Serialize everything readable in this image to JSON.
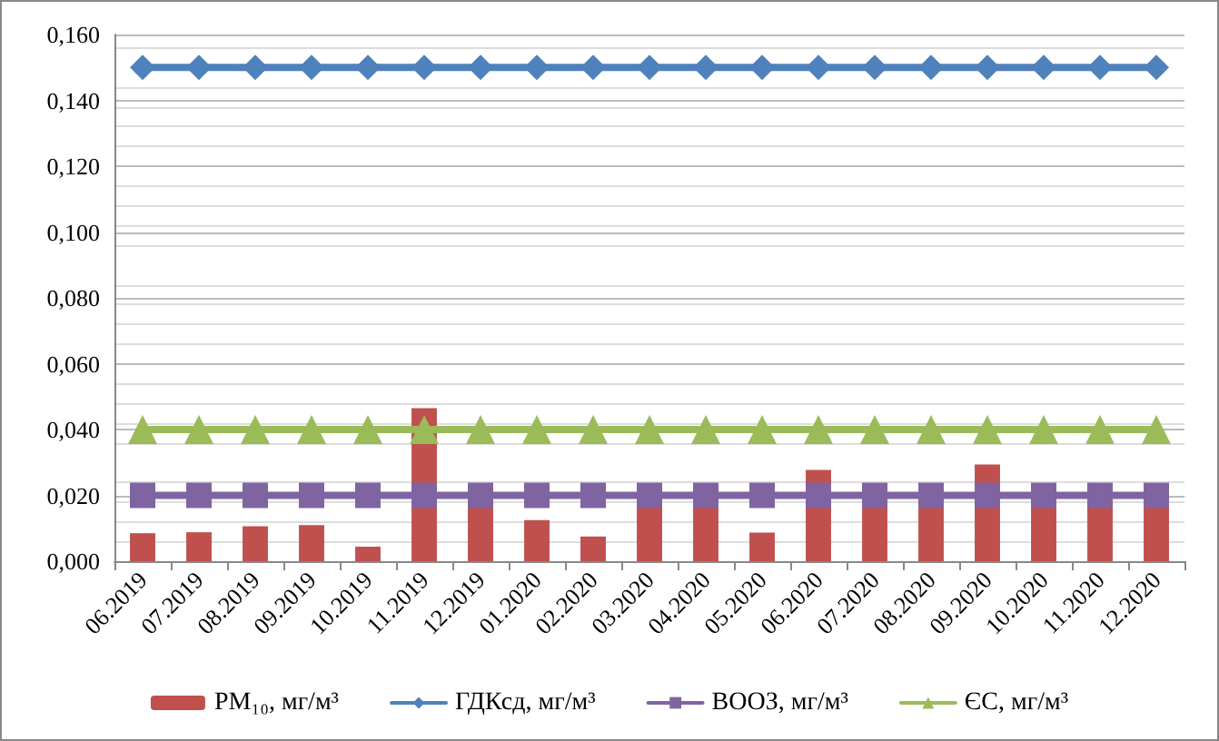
{
  "chart_data": {
    "type": "bar",
    "categories": [
      "06.2019",
      "07.2019",
      "08.2019",
      "09.2019",
      "10.2019",
      "11.2019",
      "12.2019",
      "01.2020",
      "02.2020",
      "03.2020",
      "04.2020",
      "05.2020",
      "06.2020",
      "07.2020",
      "08.2020",
      "09.2020",
      "10.2020",
      "11.2020",
      "12.2020"
    ],
    "series": [
      {
        "name": "РМ₁₀, мг/м³",
        "color": "#c0504d",
        "values": [
          0.0085,
          0.0088,
          0.0106,
          0.011,
          0.0044,
          0.0465,
          0.018,
          0.0125,
          0.0075,
          0.018,
          0.018,
          0.0087,
          0.0277,
          0.018,
          0.018,
          0.0294,
          0.018,
          0.018,
          0.018
        ]
      },
      {
        "name": "ГДКсд, мг/м³",
        "type": "line",
        "color": "#4f81bd",
        "marker": "diamond",
        "values": [
          0.15,
          0.15,
          0.15,
          0.15,
          0.15,
          0.15,
          0.15,
          0.15,
          0.15,
          0.15,
          0.15,
          0.15,
          0.15,
          0.15,
          0.15,
          0.15,
          0.15,
          0.15,
          0.15
        ]
      },
      {
        "name": "ВООЗ, мг/м³",
        "type": "line",
        "color": "#8064a2",
        "marker": "square",
        "values": [
          0.02,
          0.02,
          0.02,
          0.02,
          0.02,
          0.02,
          0.02,
          0.02,
          0.02,
          0.02,
          0.02,
          0.02,
          0.02,
          0.02,
          0.02,
          0.02,
          0.02,
          0.02,
          0.02
        ]
      },
      {
        "name": "ЄС, мг/м³",
        "type": "line",
        "color": "#9bbb59",
        "marker": "triangle",
        "values": [
          0.04,
          0.04,
          0.04,
          0.04,
          0.04,
          0.04,
          0.04,
          0.04,
          0.04,
          0.04,
          0.04,
          0.04,
          0.04,
          0.04,
          0.04,
          0.04,
          0.04,
          0.04,
          0.04
        ]
      }
    ],
    "ylim": [
      0,
      0.16
    ],
    "yticks": [
      {
        "value": 0,
        "label": "0,000"
      },
      {
        "value": 0.02,
        "label": "0,020"
      },
      {
        "value": 0.04,
        "label": "0,040"
      },
      {
        "value": 0.06,
        "label": "0,060"
      },
      {
        "value": 0.08,
        "label": "0,080"
      },
      {
        "value": 0.1,
        "label": "0,100"
      },
      {
        "value": 0.12,
        "label": "0,120"
      },
      {
        "value": 0.14,
        "label": "0,140"
      },
      {
        "value": 0.16,
        "label": "0,160"
      }
    ],
    "grid": "y",
    "legend": "bottom"
  }
}
